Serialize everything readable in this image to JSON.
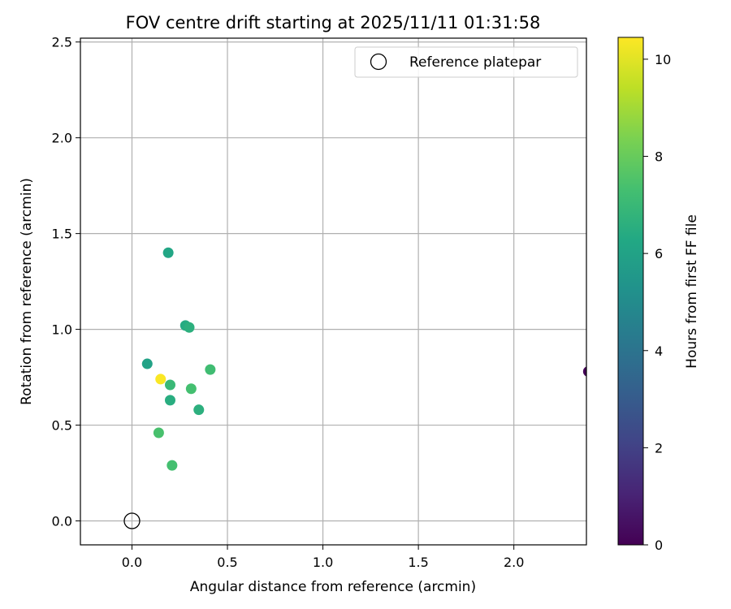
{
  "chart_data": {
    "type": "scatter",
    "title": "FOV centre drift starting at 2025/11/11 01:31:58",
    "xlabel": "Angular distance from reference (arcmin)",
    "ylabel": "Rotation from reference (arcmin)",
    "xlim": [
      -0.27,
      2.38
    ],
    "ylim": [
      -0.125,
      2.52
    ],
    "xticks": [
      0.0,
      0.5,
      1.0,
      1.5,
      2.0
    ],
    "yticks": [
      0.0,
      0.5,
      1.0,
      1.5,
      2.0,
      2.5
    ],
    "xtick_labels": [
      "0.0",
      "0.5",
      "1.0",
      "1.5",
      "2.0"
    ],
    "ytick_labels": [
      "0.0",
      "0.5",
      "1.0",
      "1.5",
      "2.0",
      "2.5"
    ],
    "grid": true,
    "legend": {
      "position": "top-right",
      "label": "Reference platepar"
    },
    "reference_point": {
      "x": 0.0,
      "y": 0.0
    },
    "colorbar": {
      "label": "Hours from first FF file",
      "colormap": "viridis",
      "range": [
        0,
        10.45
      ],
      "ticks": [
        0,
        2,
        4,
        6,
        8,
        10
      ],
      "tick_labels": [
        "0",
        "2",
        "4",
        "6",
        "8",
        "10"
      ]
    },
    "points": [
      {
        "x": 0.19,
        "y": 1.4,
        "hours": 6.2
      },
      {
        "x": 0.28,
        "y": 1.02,
        "hours": 6.4
      },
      {
        "x": 0.3,
        "y": 1.01,
        "hours": 6.6
      },
      {
        "x": 0.08,
        "y": 0.82,
        "hours": 6.0
      },
      {
        "x": 0.41,
        "y": 0.79,
        "hours": 7.2
      },
      {
        "x": 0.15,
        "y": 0.74,
        "hours": 10.4
      },
      {
        "x": 0.2,
        "y": 0.71,
        "hours": 7.0
      },
      {
        "x": 0.31,
        "y": 0.69,
        "hours": 7.3
      },
      {
        "x": 0.2,
        "y": 0.63,
        "hours": 6.5
      },
      {
        "x": 0.35,
        "y": 0.58,
        "hours": 6.6
      },
      {
        "x": 0.14,
        "y": 0.46,
        "hours": 7.4
      },
      {
        "x": 0.21,
        "y": 0.29,
        "hours": 7.3
      },
      {
        "x": 2.39,
        "y": 0.78,
        "hours": 0.1
      }
    ]
  }
}
